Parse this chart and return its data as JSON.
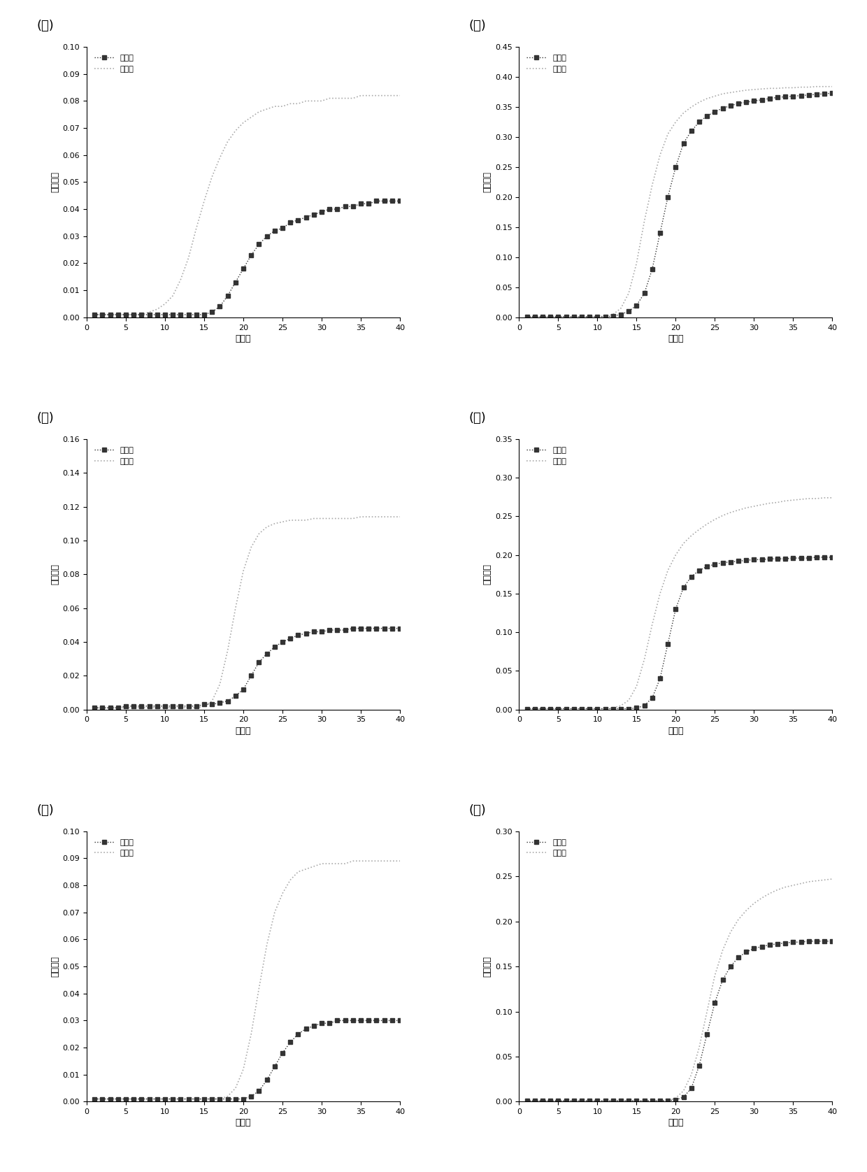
{
  "panels": [
    {
      "label": "(ａ)",
      "ylim": [
        0,
        0.1
      ],
      "yticks": [
        0.0,
        0.01,
        0.02,
        0.03,
        0.04,
        0.05,
        0.06,
        0.07,
        0.08,
        0.09,
        0.1
      ],
      "after": {
        "x": [
          1,
          2,
          3,
          4,
          5,
          6,
          7,
          8,
          9,
          10,
          11,
          12,
          13,
          14,
          15,
          16,
          17,
          18,
          19,
          20,
          21,
          22,
          23,
          24,
          25,
          26,
          27,
          28,
          29,
          30,
          31,
          32,
          33,
          34,
          35,
          36,
          37,
          38,
          39,
          40
        ],
        "y": [
          0.001,
          0.001,
          0.001,
          0.001,
          0.001,
          0.001,
          0.001,
          0.001,
          0.001,
          0.001,
          0.001,
          0.001,
          0.001,
          0.001,
          0.001,
          0.002,
          0.004,
          0.008,
          0.013,
          0.018,
          0.023,
          0.027,
          0.03,
          0.032,
          0.033,
          0.035,
          0.036,
          0.037,
          0.038,
          0.039,
          0.04,
          0.04,
          0.041,
          0.041,
          0.042,
          0.042,
          0.043,
          0.043,
          0.043,
          0.043
        ]
      },
      "before": {
        "x": [
          1,
          2,
          3,
          4,
          5,
          6,
          7,
          8,
          9,
          10,
          11,
          12,
          13,
          14,
          15,
          16,
          17,
          18,
          19,
          20,
          21,
          22,
          23,
          24,
          25,
          26,
          27,
          28,
          29,
          30,
          31,
          32,
          33,
          34,
          35,
          36,
          37,
          38,
          39,
          40
        ],
        "y": [
          0.001,
          0.001,
          0.001,
          0.001,
          0.001,
          0.001,
          0.001,
          0.002,
          0.003,
          0.005,
          0.008,
          0.014,
          0.022,
          0.033,
          0.043,
          0.052,
          0.059,
          0.065,
          0.069,
          0.072,
          0.074,
          0.076,
          0.077,
          0.078,
          0.078,
          0.079,
          0.079,
          0.08,
          0.08,
          0.08,
          0.081,
          0.081,
          0.081,
          0.081,
          0.082,
          0.082,
          0.082,
          0.082,
          0.082,
          0.082
        ]
      }
    },
    {
      "label": "(ｂ)",
      "ylim": [
        0,
        0.45
      ],
      "yticks": [
        0.0,
        0.05,
        0.1,
        0.15,
        0.2,
        0.25,
        0.3,
        0.35,
        0.4,
        0.45
      ],
      "after": {
        "x": [
          1,
          2,
          3,
          4,
          5,
          6,
          7,
          8,
          9,
          10,
          11,
          12,
          13,
          14,
          15,
          16,
          17,
          18,
          19,
          20,
          21,
          22,
          23,
          24,
          25,
          26,
          27,
          28,
          29,
          30,
          31,
          32,
          33,
          34,
          35,
          36,
          37,
          38,
          39,
          40
        ],
        "y": [
          0.001,
          0.001,
          0.001,
          0.001,
          0.001,
          0.001,
          0.001,
          0.001,
          0.001,
          0.001,
          0.001,
          0.002,
          0.005,
          0.01,
          0.02,
          0.04,
          0.08,
          0.14,
          0.2,
          0.25,
          0.29,
          0.31,
          0.325,
          0.335,
          0.342,
          0.348,
          0.352,
          0.356,
          0.358,
          0.36,
          0.362,
          0.364,
          0.366,
          0.367,
          0.368,
          0.369,
          0.37,
          0.371,
          0.372,
          0.373
        ]
      },
      "before": {
        "x": [
          1,
          2,
          3,
          4,
          5,
          6,
          7,
          8,
          9,
          10,
          11,
          12,
          13,
          14,
          15,
          16,
          17,
          18,
          19,
          20,
          21,
          22,
          23,
          24,
          25,
          26,
          27,
          28,
          29,
          30,
          31,
          32,
          33,
          34,
          35,
          36,
          37,
          38,
          39,
          40
        ],
        "y": [
          0.001,
          0.001,
          0.001,
          0.001,
          0.001,
          0.001,
          0.001,
          0.001,
          0.001,
          0.001,
          0.002,
          0.005,
          0.015,
          0.04,
          0.09,
          0.16,
          0.22,
          0.27,
          0.305,
          0.325,
          0.34,
          0.35,
          0.358,
          0.364,
          0.368,
          0.372,
          0.374,
          0.376,
          0.378,
          0.379,
          0.38,
          0.381,
          0.381,
          0.382,
          0.382,
          0.383,
          0.383,
          0.384,
          0.384,
          0.384
        ]
      }
    },
    {
      "label": "(ｃ)",
      "ylim": [
        0,
        0.16
      ],
      "yticks": [
        0.0,
        0.02,
        0.04,
        0.06,
        0.08,
        0.1,
        0.12,
        0.14,
        0.16
      ],
      "after": {
        "x": [
          1,
          2,
          3,
          4,
          5,
          6,
          7,
          8,
          9,
          10,
          11,
          12,
          13,
          14,
          15,
          16,
          17,
          18,
          19,
          20,
          21,
          22,
          23,
          24,
          25,
          26,
          27,
          28,
          29,
          30,
          31,
          32,
          33,
          34,
          35,
          36,
          37,
          38,
          39,
          40
        ],
        "y": [
          0.001,
          0.001,
          0.001,
          0.001,
          0.002,
          0.002,
          0.002,
          0.002,
          0.002,
          0.002,
          0.002,
          0.002,
          0.002,
          0.002,
          0.003,
          0.003,
          0.004,
          0.005,
          0.008,
          0.012,
          0.02,
          0.028,
          0.033,
          0.037,
          0.04,
          0.042,
          0.044,
          0.045,
          0.046,
          0.046,
          0.047,
          0.047,
          0.047,
          0.048,
          0.048,
          0.048,
          0.048,
          0.048,
          0.048,
          0.048
        ]
      },
      "before": {
        "x": [
          1,
          2,
          3,
          4,
          5,
          6,
          7,
          8,
          9,
          10,
          11,
          12,
          13,
          14,
          15,
          16,
          17,
          18,
          19,
          20,
          21,
          22,
          23,
          24,
          25,
          26,
          27,
          28,
          29,
          30,
          31,
          32,
          33,
          34,
          35,
          36,
          37,
          38,
          39,
          40
        ],
        "y": [
          0.001,
          0.001,
          0.001,
          0.001,
          0.001,
          0.001,
          0.001,
          0.001,
          0.001,
          0.001,
          0.001,
          0.001,
          0.001,
          0.001,
          0.002,
          0.005,
          0.015,
          0.035,
          0.06,
          0.082,
          0.096,
          0.104,
          0.108,
          0.11,
          0.111,
          0.112,
          0.112,
          0.112,
          0.113,
          0.113,
          0.113,
          0.113,
          0.113,
          0.113,
          0.114,
          0.114,
          0.114,
          0.114,
          0.114,
          0.114
        ]
      }
    },
    {
      "label": "(ｄ)",
      "ylim": [
        0,
        0.35
      ],
      "yticks": [
        0.0,
        0.05,
        0.1,
        0.15,
        0.2,
        0.25,
        0.3,
        0.35
      ],
      "after": {
        "x": [
          1,
          2,
          3,
          4,
          5,
          6,
          7,
          8,
          9,
          10,
          11,
          12,
          13,
          14,
          15,
          16,
          17,
          18,
          19,
          20,
          21,
          22,
          23,
          24,
          25,
          26,
          27,
          28,
          29,
          30,
          31,
          32,
          33,
          34,
          35,
          36,
          37,
          38,
          39,
          40
        ],
        "y": [
          0.001,
          0.001,
          0.001,
          0.001,
          0.001,
          0.001,
          0.001,
          0.001,
          0.001,
          0.001,
          0.001,
          0.001,
          0.001,
          0.001,
          0.002,
          0.005,
          0.015,
          0.04,
          0.085,
          0.13,
          0.158,
          0.172,
          0.18,
          0.185,
          0.188,
          0.19,
          0.191,
          0.192,
          0.193,
          0.194,
          0.194,
          0.195,
          0.195,
          0.195,
          0.196,
          0.196,
          0.196,
          0.197,
          0.197,
          0.197
        ]
      },
      "before": {
        "x": [
          1,
          2,
          3,
          4,
          5,
          6,
          7,
          8,
          9,
          10,
          11,
          12,
          13,
          14,
          15,
          16,
          17,
          18,
          19,
          20,
          21,
          22,
          23,
          24,
          25,
          26,
          27,
          28,
          29,
          30,
          31,
          32,
          33,
          34,
          35,
          36,
          37,
          38,
          39,
          40
        ],
        "y": [
          0.001,
          0.001,
          0.001,
          0.001,
          0.001,
          0.001,
          0.001,
          0.001,
          0.001,
          0.001,
          0.001,
          0.002,
          0.005,
          0.012,
          0.03,
          0.065,
          0.11,
          0.15,
          0.18,
          0.2,
          0.215,
          0.225,
          0.233,
          0.24,
          0.246,
          0.251,
          0.255,
          0.258,
          0.261,
          0.263,
          0.265,
          0.267,
          0.268,
          0.27,
          0.271,
          0.272,
          0.273,
          0.273,
          0.274,
          0.274
        ]
      }
    },
    {
      "label": "(ｅ)",
      "ylim": [
        0,
        0.1
      ],
      "yticks": [
        0.0,
        0.01,
        0.02,
        0.03,
        0.04,
        0.05,
        0.06,
        0.07,
        0.08,
        0.09,
        0.1
      ],
      "after": {
        "x": [
          1,
          2,
          3,
          4,
          5,
          6,
          7,
          8,
          9,
          10,
          11,
          12,
          13,
          14,
          15,
          16,
          17,
          18,
          19,
          20,
          21,
          22,
          23,
          24,
          25,
          26,
          27,
          28,
          29,
          30,
          31,
          32,
          33,
          34,
          35,
          36,
          37,
          38,
          39,
          40
        ],
        "y": [
          0.001,
          0.001,
          0.001,
          0.001,
          0.001,
          0.001,
          0.001,
          0.001,
          0.001,
          0.001,
          0.001,
          0.001,
          0.001,
          0.001,
          0.001,
          0.001,
          0.001,
          0.001,
          0.001,
          0.001,
          0.002,
          0.004,
          0.008,
          0.013,
          0.018,
          0.022,
          0.025,
          0.027,
          0.028,
          0.029,
          0.029,
          0.03,
          0.03,
          0.03,
          0.03,
          0.03,
          0.03,
          0.03,
          0.03,
          0.03
        ]
      },
      "before": {
        "x": [
          1,
          2,
          3,
          4,
          5,
          6,
          7,
          8,
          9,
          10,
          11,
          12,
          13,
          14,
          15,
          16,
          17,
          18,
          19,
          20,
          21,
          22,
          23,
          24,
          25,
          26,
          27,
          28,
          29,
          30,
          31,
          32,
          33,
          34,
          35,
          36,
          37,
          38,
          39,
          40
        ],
        "y": [
          0.001,
          0.001,
          0.001,
          0.001,
          0.001,
          0.001,
          0.001,
          0.001,
          0.001,
          0.001,
          0.001,
          0.001,
          0.001,
          0.001,
          0.001,
          0.001,
          0.001,
          0.002,
          0.005,
          0.012,
          0.025,
          0.042,
          0.058,
          0.07,
          0.077,
          0.082,
          0.085,
          0.086,
          0.087,
          0.088,
          0.088,
          0.088,
          0.088,
          0.089,
          0.089,
          0.089,
          0.089,
          0.089,
          0.089,
          0.089
        ]
      }
    },
    {
      "label": "(ｆ)",
      "ylim": [
        0,
        0.3
      ],
      "yticks": [
        0.0,
        0.05,
        0.1,
        0.15,
        0.2,
        0.25,
        0.3
      ],
      "after": {
        "x": [
          1,
          2,
          3,
          4,
          5,
          6,
          7,
          8,
          9,
          10,
          11,
          12,
          13,
          14,
          15,
          16,
          17,
          18,
          19,
          20,
          21,
          22,
          23,
          24,
          25,
          26,
          27,
          28,
          29,
          30,
          31,
          32,
          33,
          34,
          35,
          36,
          37,
          38,
          39,
          40
        ],
        "y": [
          0.001,
          0.001,
          0.001,
          0.001,
          0.001,
          0.001,
          0.001,
          0.001,
          0.001,
          0.001,
          0.001,
          0.001,
          0.001,
          0.001,
          0.001,
          0.001,
          0.001,
          0.001,
          0.001,
          0.002,
          0.005,
          0.015,
          0.04,
          0.075,
          0.11,
          0.135,
          0.15,
          0.16,
          0.166,
          0.17,
          0.172,
          0.174,
          0.175,
          0.176,
          0.177,
          0.177,
          0.178,
          0.178,
          0.178,
          0.178
        ]
      },
      "before": {
        "x": [
          1,
          2,
          3,
          4,
          5,
          6,
          7,
          8,
          9,
          10,
          11,
          12,
          13,
          14,
          15,
          16,
          17,
          18,
          19,
          20,
          21,
          22,
          23,
          24,
          25,
          26,
          27,
          28,
          29,
          30,
          31,
          32,
          33,
          34,
          35,
          36,
          37,
          38,
          39,
          40
        ],
        "y": [
          0.001,
          0.001,
          0.001,
          0.001,
          0.001,
          0.001,
          0.001,
          0.001,
          0.001,
          0.001,
          0.001,
          0.001,
          0.001,
          0.001,
          0.001,
          0.001,
          0.001,
          0.001,
          0.001,
          0.004,
          0.012,
          0.03,
          0.06,
          0.1,
          0.14,
          0.168,
          0.188,
          0.202,
          0.212,
          0.22,
          0.226,
          0.231,
          0.235,
          0.238,
          0.24,
          0.242,
          0.244,
          0.245,
          0.246,
          0.247
        ]
      }
    }
  ],
  "xlabel": "循环数",
  "ylabel": "荧光强度",
  "legend_after": "酶切后",
  "legend_before": "酶切前",
  "line_color_after": "#333333",
  "line_color_before": "#aaaaaa",
  "background_color": "#ffffff",
  "xlim": [
    0,
    40
  ],
  "xticks": [
    0,
    5,
    10,
    15,
    20,
    25,
    30,
    35,
    40
  ]
}
